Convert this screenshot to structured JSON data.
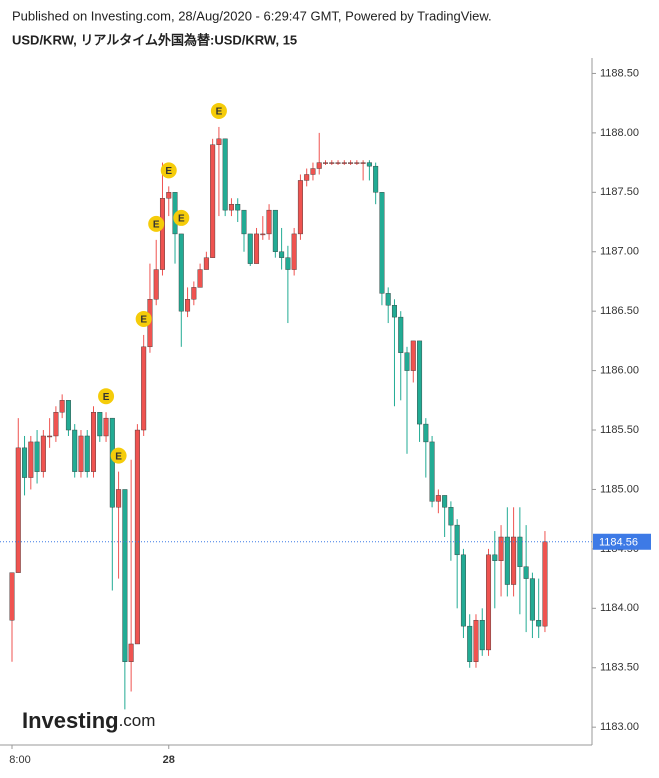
{
  "chart_data": {
    "type": "candlestick",
    "published": "Published on Investing.com, 28/Aug/2020 - 6:29:47 GMT, Powered by TradingView.",
    "title": "USD/KRW, リアルタイム外国為替:USD/KRW, 15",
    "brand": "Investing",
    "brand_suffix": ".com",
    "up_color": "#ef5350",
    "down_color": "#22ab94",
    "ylim": [
      1182.85,
      1188.63
    ],
    "yticks": [
      {
        "value": 1183,
        "label": "1183.00"
      },
      {
        "value": 1183.5,
        "label": "1183.50"
      },
      {
        "value": 1184,
        "label": "1184.00"
      },
      {
        "value": 1184.5,
        "label": "1184.50"
      },
      {
        "value": 1185,
        "label": "1185.00"
      },
      {
        "value": 1185.5,
        "label": "1185.50"
      },
      {
        "value": 1186,
        "label": "1186.00"
      },
      {
        "value": 1186.5,
        "label": "1186.50"
      },
      {
        "value": 1187,
        "label": "1187.00"
      },
      {
        "value": 1187.5,
        "label": "1187.50"
      },
      {
        "value": 1188,
        "label": "1188.00"
      },
      {
        "value": 1188.5,
        "label": "1188.50"
      }
    ],
    "last_price": 1184.56,
    "last_price_color": "#3d7ae6",
    "categories": [
      "8:00",
      null,
      null,
      null,
      null,
      null,
      null,
      null,
      null,
      null,
      null,
      null,
      null,
      null,
      null,
      null,
      null,
      null,
      null,
      null,
      null,
      null,
      null,
      null,
      null,
      "28",
      null,
      null,
      null,
      null,
      null,
      null,
      null,
      null,
      null,
      null,
      null,
      null,
      null,
      null,
      null,
      null,
      null,
      null,
      null,
      null,
      null,
      null,
      null,
      null,
      null,
      null,
      null,
      null,
      null,
      null,
      null,
      null,
      null,
      null,
      null,
      null,
      null,
      null,
      null,
      null,
      null,
      null,
      null,
      null,
      null,
      null,
      null,
      null,
      null,
      null,
      null,
      null,
      null,
      null,
      null,
      null,
      null,
      null,
      null,
      null
    ],
    "open": [
      1183.9,
      1184.3,
      1185.35,
      1185.1,
      1185.4,
      1185.15,
      1185.45,
      1185.45,
      1185.65,
      1185.75,
      1185.5,
      1185.15,
      1185.45,
      1185.15,
      1185.65,
      1185.45,
      1185.6,
      1184.85,
      1185.0,
      1183.55,
      1183.7,
      1185.5,
      1186.2,
      1186.6,
      1186.85,
      1187.45,
      1187.5,
      1187.15,
      1186.5,
      1186.6,
      1186.7,
      1186.85,
      1186.95,
      1187.9,
      1187.95,
      1187.35,
      1187.4,
      1187.35,
      1187.15,
      1186.9,
      1187.15,
      1187.15,
      1187.35,
      1187.0,
      1186.95,
      1186.85,
      1187.15,
      1187.6,
      1187.65,
      1187.7,
      1187.75,
      1187.75,
      1187.75,
      1187.75,
      1187.75,
      1187.75,
      1187.75,
      1187.75,
      1187.72,
      1187.5,
      1186.65,
      1186.55,
      1186.45,
      1186.15,
      1186.0,
      1186.25,
      1185.55,
      1185.4,
      1184.9,
      1184.95,
      1184.85,
      1184.7,
      1184.45,
      1183.85,
      1183.55,
      1183.9,
      1183.65,
      1184.45,
      1184.4,
      1184.6,
      1184.2,
      1184.6,
      1184.35,
      1184.25,
      1183.9,
      1183.85
    ],
    "high": [
      1184.3,
      1185.6,
      1185.45,
      1185.45,
      1185.5,
      1185.5,
      1185.6,
      1185.7,
      1185.8,
      1185.75,
      1185.55,
      1185.5,
      1185.5,
      1185.7,
      1185.65,
      1185.65,
      1185.6,
      1185.15,
      1185.0,
      1185.25,
      1185.55,
      1186.3,
      1186.9,
      1187.1,
      1187.75,
      1187.55,
      1187.5,
      1187.15,
      1186.7,
      1186.75,
      1186.9,
      1187.0,
      1187.95,
      1188.05,
      1187.95,
      1187.45,
      1187.45,
      1187.35,
      1187.15,
      1187.2,
      1187.3,
      1187.4,
      1187.35,
      1187.2,
      1187.05,
      1187.2,
      1187.65,
      1187.7,
      1187.75,
      1188.0,
      1187.77,
      1187.77,
      1187.77,
      1187.77,
      1187.77,
      1187.77,
      1187.77,
      1187.77,
      1187.75,
      1187.5,
      1186.7,
      1186.6,
      1186.5,
      1186.2,
      1186.25,
      1186.25,
      1185.6,
      1185.45,
      1185.0,
      1184.95,
      1184.9,
      1184.75,
      1184.5,
      1183.95,
      1183.95,
      1184.0,
      1184.5,
      1184.65,
      1184.7,
      1184.85,
      1184.85,
      1184.85,
      1184.7,
      1184.3,
      1184.25,
      1184.65
    ],
    "low": [
      1183.55,
      1184.3,
      1184.95,
      1185.0,
      1185.05,
      1185.1,
      1185.35,
      1185.4,
      1185.6,
      1185.45,
      1185.1,
      1185.1,
      1185.1,
      1185.1,
      1185.4,
      1185.4,
      1184.15,
      1184.25,
      1183.15,
      1183.3,
      1183.7,
      1185.45,
      1186.15,
      1186.55,
      1186.8,
      1187.3,
      1186.9,
      1186.2,
      1186.45,
      1186.55,
      1186.7,
      1186.85,
      1186.95,
      1187.3,
      1187.3,
      1187.3,
      1187.25,
      1187.0,
      1186.88,
      1186.9,
      1187.1,
      1187.1,
      1186.95,
      1186.85,
      1186.4,
      1186.8,
      1187.1,
      1187.55,
      1187.6,
      1187.65,
      1187.73,
      1187.73,
      1187.73,
      1187.73,
      1187.73,
      1187.73,
      1187.6,
      1187.6,
      1187.4,
      1186.55,
      1186.4,
      1185.7,
      1185.75,
      1185.3,
      1185.9,
      1185.4,
      1185.1,
      1184.85,
      1184.8,
      1184.6,
      1184.4,
      1184.0,
      1183.75,
      1183.5,
      1183.5,
      1183.6,
      1183.6,
      1184.0,
      1184.1,
      1184.1,
      1184.1,
      1183.95,
      1183.8,
      1183.75,
      1183.75,
      1183.8
    ],
    "close": [
      1184.3,
      1185.35,
      1185.1,
      1185.4,
      1185.15,
      1185.45,
      1185.45,
      1185.65,
      1185.75,
      1185.5,
      1185.15,
      1185.45,
      1185.15,
      1185.65,
      1185.45,
      1185.6,
      1184.85,
      1185.0,
      1183.55,
      1183.7,
      1185.5,
      1186.2,
      1186.6,
      1186.85,
      1187.45,
      1187.5,
      1187.15,
      1186.5,
      1186.6,
      1186.7,
      1186.85,
      1186.95,
      1187.9,
      1187.95,
      1187.35,
      1187.4,
      1187.35,
      1187.15,
      1186.9,
      1187.15,
      1187.15,
      1187.35,
      1187.0,
      1186.95,
      1186.85,
      1187.15,
      1187.6,
      1187.65,
      1187.7,
      1187.75,
      1187.75,
      1187.75,
      1187.75,
      1187.75,
      1187.75,
      1187.75,
      1187.75,
      1187.72,
      1187.5,
      1186.65,
      1186.55,
      1186.45,
      1186.15,
      1186.0,
      1186.25,
      1185.55,
      1185.4,
      1184.9,
      1184.95,
      1184.85,
      1184.7,
      1184.45,
      1183.85,
      1183.55,
      1183.9,
      1183.65,
      1184.45,
      1184.4,
      1184.6,
      1184.2,
      1184.6,
      1184.35,
      1184.25,
      1183.9,
      1183.85,
      1184.56
    ],
    "events": [
      {
        "index": 15,
        "label": "E"
      },
      {
        "index": 17,
        "label": "E"
      },
      {
        "index": 21,
        "label": "E"
      },
      {
        "index": 23,
        "label": "E"
      },
      {
        "index": 25,
        "label": "E"
      },
      {
        "index": 27,
        "label": "E"
      },
      {
        "index": 33,
        "label": "E"
      }
    ]
  }
}
